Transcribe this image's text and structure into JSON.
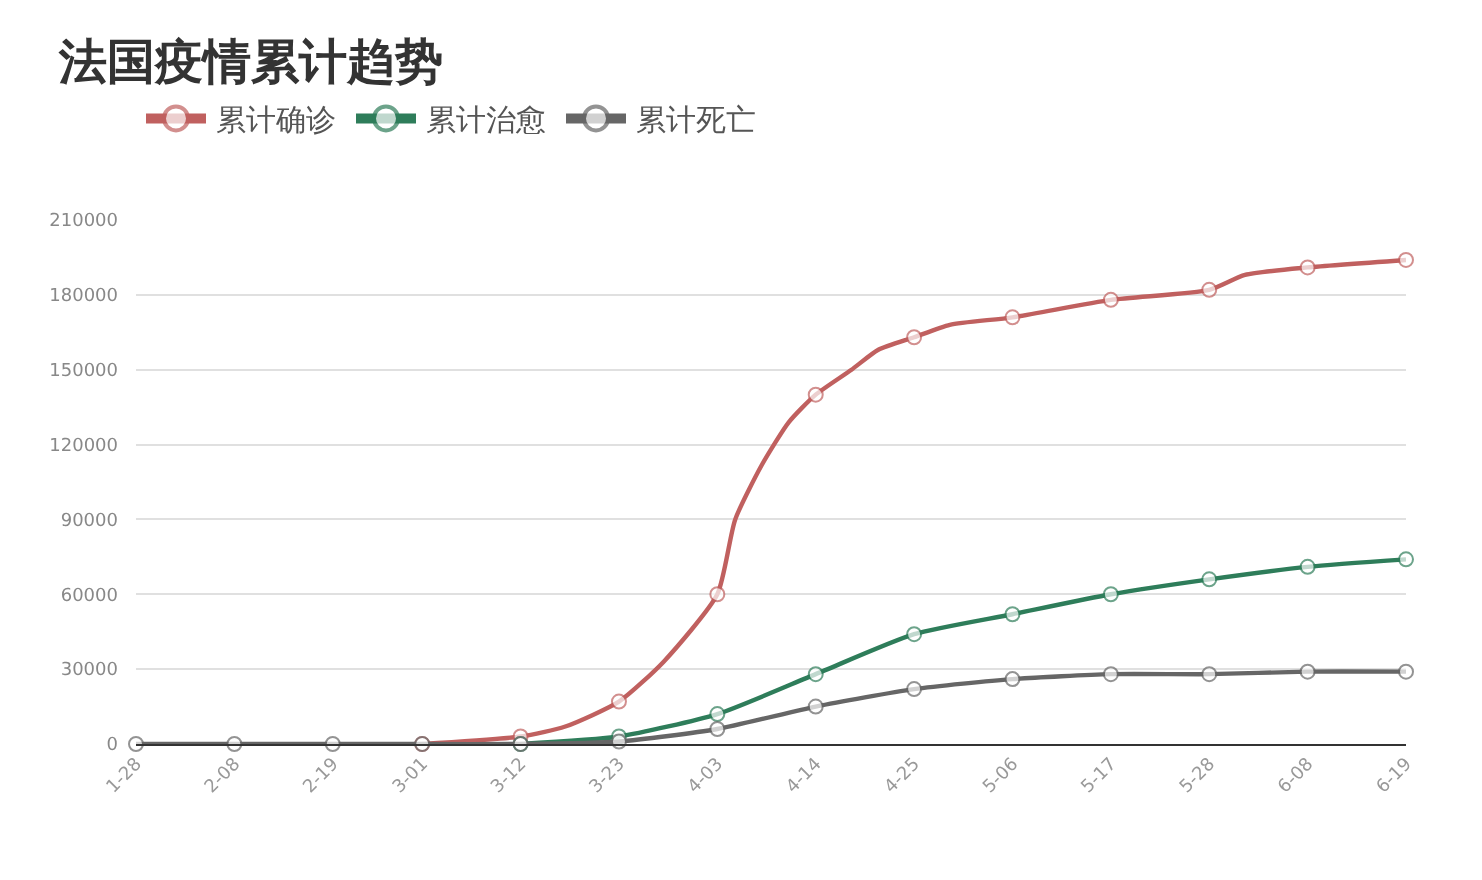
{
  "chart_data": {
    "type": "line",
    "title": "法国疫情累计趋势",
    "series": [
      {
        "name": "累计确诊",
        "color": "#c0605f",
        "x": [
          "--03-01",
          "--03-12",
          "--03-17",
          "--03-23",
          "--03-28",
          "--04-03",
          "--04-05",
          "--04-08",
          "--04-11",
          "--04-14",
          "--04-18",
          "--04-21",
          "--04-25",
          "--04-29",
          "--05-06",
          "--05-17",
          "--05-28",
          "--06-01",
          "--06-08",
          "--06-19"
        ],
        "values": [
          0,
          3000,
          7000,
          17000,
          33000,
          60000,
          90000,
          112000,
          129000,
          140000,
          150000,
          158000,
          163000,
          168000,
          171000,
          178000,
          182000,
          188000,
          191000,
          194000
        ]
      },
      {
        "name": "累计治愈",
        "color": "#2e7d5a",
        "x": [
          "--03-12",
          "--03-23",
          "--04-03",
          "--04-14",
          "--04-25",
          "--05-06",
          "--05-17",
          "--05-28",
          "--06-08",
          "--06-19"
        ],
        "values": [
          0,
          3000,
          12000,
          28000,
          44000,
          52000,
          60000,
          66000,
          71000,
          74000
        ]
      },
      {
        "name": "累计死亡",
        "color": "#666666",
        "x": [
          "--01-28",
          "--02-08",
          "--02-19",
          "--03-01",
          "--03-12",
          "--03-23",
          "--04-03",
          "--04-14",
          "--04-25",
          "--05-06",
          "--05-17",
          "--05-28",
          "--06-08",
          "--06-19"
        ],
        "values": [
          0,
          0,
          0,
          0,
          0,
          1000,
          6000,
          15000,
          22000,
          26000,
          28000,
          28000,
          29000,
          29000
        ]
      }
    ],
    "xlim": [
      "--01-28",
      "--06-19"
    ],
    "xticks": [
      {
        "value": "--01-28",
        "label": "1-28"
      },
      {
        "value": "--02-08",
        "label": "2-08"
      },
      {
        "value": "--02-19",
        "label": "2-19"
      },
      {
        "value": "--03-01",
        "label": "3-01"
      },
      {
        "value": "--03-12",
        "label": "3-12"
      },
      {
        "value": "--03-23",
        "label": "3-23"
      },
      {
        "value": "--04-03",
        "label": "4-03"
      },
      {
        "value": "--04-14",
        "label": "4-14"
      },
      {
        "value": "--04-25",
        "label": "4-25"
      },
      {
        "value": "--05-06",
        "label": "5-06"
      },
      {
        "value": "--05-17",
        "label": "5-17"
      },
      {
        "value": "--05-28",
        "label": "5-28"
      },
      {
        "value": "--06-08",
        "label": "6-08"
      },
      {
        "value": "--06-19",
        "label": "6-19"
      }
    ],
    "ylim": [
      0,
      210000
    ],
    "yticks": [
      0,
      30000,
      60000,
      90000,
      120000,
      150000,
      180000,
      210000
    ],
    "grid": "y",
    "legend": "top left",
    "marker": "circle",
    "line_style": "solid"
  }
}
